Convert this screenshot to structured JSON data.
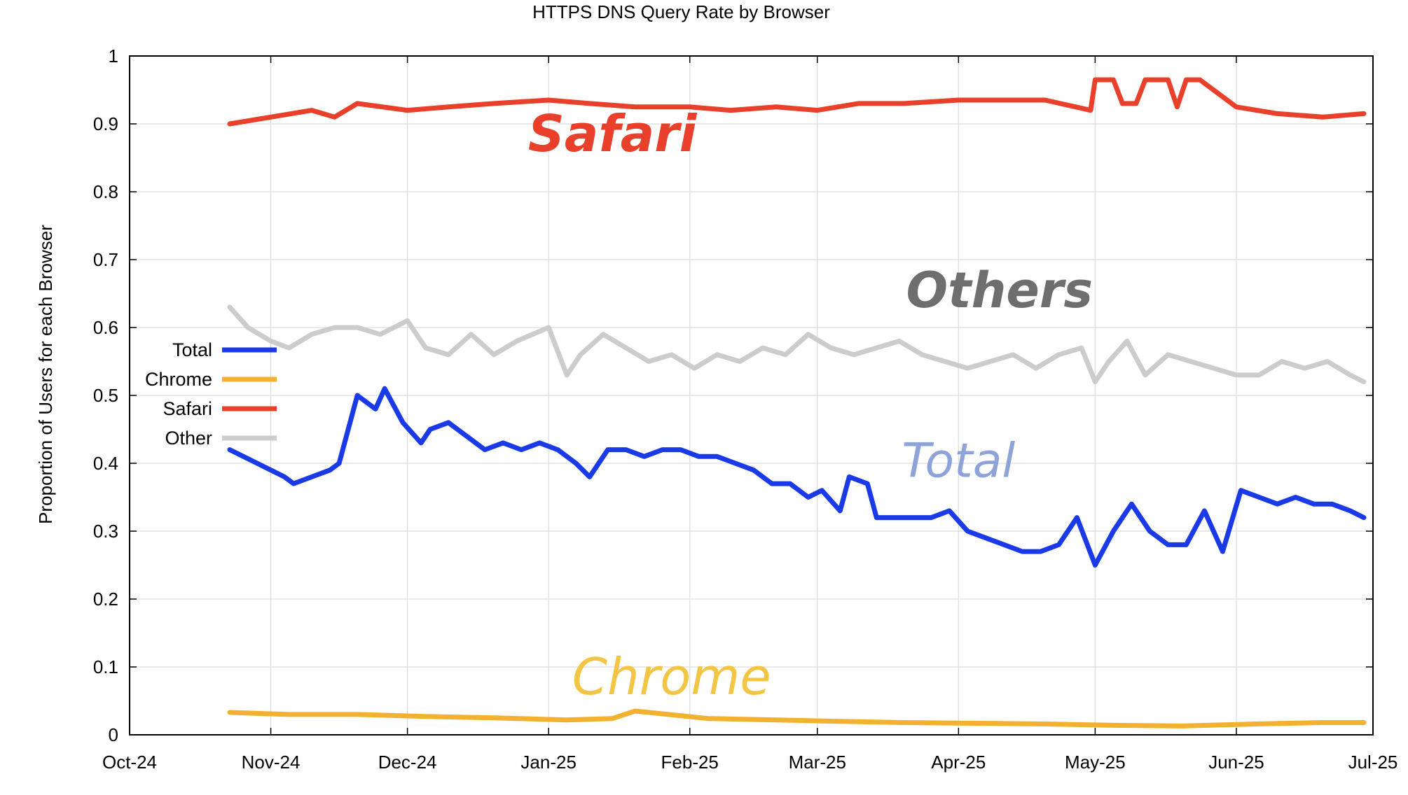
{
  "chart_data": {
    "type": "line",
    "title": "HTTPS DNS Query Rate by Browser",
    "ylabel": "Proportion of Users for each Browser",
    "xlabel": "",
    "ylim": [
      0,
      1
    ],
    "yticks": [
      "0",
      "0.1",
      "0.2",
      "0.3",
      "0.4",
      "0.5",
      "0.6",
      "0.7",
      "0.8",
      "0.9",
      "1"
    ],
    "xticks": [
      "Oct-24",
      "Nov-24",
      "Dec-24",
      "Jan-25",
      "Feb-25",
      "Mar-25",
      "Apr-25",
      "May-25",
      "Jun-25",
      "Jul-25"
    ],
    "xlim": [
      "2024-10-01",
      "2025-07-01"
    ],
    "grid": true,
    "legend_position": "center-left",
    "series": [
      {
        "name": "Total",
        "color": "#1a3ae8",
        "x": [
          "2024-10-23",
          "2024-10-29",
          "2024-11-04",
          "2024-11-06",
          "2024-11-10",
          "2024-11-14",
          "2024-11-16",
          "2024-11-20",
          "2024-11-24",
          "2024-11-26",
          "2024-11-30",
          "2024-12-04",
          "2024-12-06",
          "2024-12-10",
          "2024-12-14",
          "2024-12-18",
          "2024-12-22",
          "2024-12-26",
          "2024-12-30",
          "2025-01-03",
          "2025-01-07",
          "2025-01-10",
          "2025-01-14",
          "2025-01-18",
          "2025-01-22",
          "2025-01-26",
          "2025-01-30",
          "2025-02-03",
          "2025-02-07",
          "2025-02-11",
          "2025-02-15",
          "2025-02-19",
          "2025-02-23",
          "2025-02-27",
          "2025-03-02",
          "2025-03-06",
          "2025-03-08",
          "2025-03-12",
          "2025-03-14",
          "2025-03-18",
          "2025-03-22",
          "2025-03-26",
          "2025-03-30",
          "2025-04-03",
          "2025-04-07",
          "2025-04-11",
          "2025-04-15",
          "2025-04-19",
          "2025-04-23",
          "2025-04-27",
          "2025-05-01",
          "2025-05-05",
          "2025-05-09",
          "2025-05-13",
          "2025-05-17",
          "2025-05-21",
          "2025-05-25",
          "2025-05-29",
          "2025-06-02",
          "2025-06-06",
          "2025-06-10",
          "2025-06-14",
          "2025-06-18",
          "2025-06-22",
          "2025-06-26",
          "2025-06-29"
        ],
        "values": [
          0.42,
          0.4,
          0.38,
          0.37,
          0.38,
          0.39,
          0.4,
          0.5,
          0.48,
          0.51,
          0.46,
          0.43,
          0.45,
          0.46,
          0.44,
          0.42,
          0.43,
          0.42,
          0.43,
          0.42,
          0.4,
          0.38,
          0.42,
          0.42,
          0.41,
          0.42,
          0.42,
          0.41,
          0.41,
          0.4,
          0.39,
          0.37,
          0.37,
          0.35,
          0.36,
          0.33,
          0.38,
          0.37,
          0.32,
          0.32,
          0.32,
          0.32,
          0.33,
          0.3,
          0.29,
          0.28,
          0.27,
          0.27,
          0.28,
          0.32,
          0.25,
          0.3,
          0.34,
          0.3,
          0.28,
          0.28,
          0.33,
          0.27,
          0.36,
          0.35,
          0.34,
          0.35,
          0.34,
          0.34,
          0.33,
          0.32
        ]
      },
      {
        "name": "Chrome",
        "color": "#f2b12f",
        "x": [
          "2024-10-23",
          "2024-11-05",
          "2024-11-20",
          "2024-12-05",
          "2024-12-20",
          "2025-01-05",
          "2025-01-15",
          "2025-01-20",
          "2025-02-05",
          "2025-02-20",
          "2025-03-05",
          "2025-03-20",
          "2025-04-05",
          "2025-04-20",
          "2025-05-05",
          "2025-05-20",
          "2025-06-05",
          "2025-06-20",
          "2025-06-29"
        ],
        "values": [
          0.033,
          0.03,
          0.03,
          0.027,
          0.025,
          0.022,
          0.024,
          0.035,
          0.024,
          0.022,
          0.02,
          0.018,
          0.017,
          0.016,
          0.014,
          0.013,
          0.016,
          0.018,
          0.018
        ]
      },
      {
        "name": "Safari",
        "color": "#e8402a",
        "x": [
          "2024-10-23",
          "2024-11-01",
          "2024-11-10",
          "2024-11-15",
          "2024-11-20",
          "2024-12-01",
          "2024-12-10",
          "2024-12-20",
          "2025-01-01",
          "2025-01-10",
          "2025-01-20",
          "2025-02-01",
          "2025-02-10",
          "2025-02-20",
          "2025-03-01",
          "2025-03-10",
          "2025-03-20",
          "2025-04-01",
          "2025-04-10",
          "2025-04-20",
          "2025-04-30",
          "2025-05-01",
          "2025-05-05",
          "2025-05-07",
          "2025-05-10",
          "2025-05-12",
          "2025-05-17",
          "2025-05-19",
          "2025-05-21",
          "2025-05-24",
          "2025-06-01",
          "2025-06-10",
          "2025-06-20",
          "2025-06-29"
        ],
        "values": [
          0.9,
          0.91,
          0.92,
          0.91,
          0.93,
          0.92,
          0.925,
          0.93,
          0.935,
          0.93,
          0.925,
          0.925,
          0.92,
          0.925,
          0.92,
          0.93,
          0.93,
          0.935,
          0.935,
          0.935,
          0.92,
          0.965,
          0.965,
          0.93,
          0.93,
          0.965,
          0.965,
          0.925,
          0.965,
          0.965,
          0.925,
          0.915,
          0.91,
          0.915
        ]
      },
      {
        "name": "Other",
        "color": "#cccccc",
        "x": [
          "2024-10-23",
          "2024-10-27",
          "2024-11-01",
          "2024-11-05",
          "2024-11-10",
          "2024-11-15",
          "2024-11-20",
          "2024-11-25",
          "2024-12-01",
          "2024-12-05",
          "2024-12-10",
          "2024-12-15",
          "2024-12-20",
          "2024-12-25",
          "2025-01-01",
          "2025-01-05",
          "2025-01-08",
          "2025-01-13",
          "2025-01-18",
          "2025-01-23",
          "2025-01-28",
          "2025-02-02",
          "2025-02-07",
          "2025-02-12",
          "2025-02-17",
          "2025-02-22",
          "2025-02-27",
          "2025-03-04",
          "2025-03-09",
          "2025-03-14",
          "2025-03-19",
          "2025-03-24",
          "2025-03-29",
          "2025-04-03",
          "2025-04-08",
          "2025-04-13",
          "2025-04-18",
          "2025-04-23",
          "2025-04-28",
          "2025-05-01",
          "2025-05-04",
          "2025-05-08",
          "2025-05-12",
          "2025-05-17",
          "2025-05-22",
          "2025-05-27",
          "2025-06-01",
          "2025-06-06",
          "2025-06-11",
          "2025-06-16",
          "2025-06-21",
          "2025-06-26",
          "2025-06-29"
        ],
        "values": [
          0.63,
          0.6,
          0.58,
          0.57,
          0.59,
          0.6,
          0.6,
          0.59,
          0.61,
          0.57,
          0.56,
          0.59,
          0.56,
          0.58,
          0.6,
          0.53,
          0.56,
          0.59,
          0.57,
          0.55,
          0.56,
          0.54,
          0.56,
          0.55,
          0.57,
          0.56,
          0.59,
          0.57,
          0.56,
          0.57,
          0.58,
          0.56,
          0.55,
          0.54,
          0.55,
          0.56,
          0.54,
          0.56,
          0.57,
          0.52,
          0.55,
          0.58,
          0.53,
          0.56,
          0.55,
          0.54,
          0.53,
          0.53,
          0.55,
          0.54,
          0.55,
          0.53,
          0.52
        ]
      }
    ],
    "annotations": [
      {
        "text": "Safari",
        "color": "#e8402a"
      },
      {
        "text": "Others",
        "color": "#6e6e6e"
      },
      {
        "text": "Total",
        "color": "#8ea4d9"
      },
      {
        "text": "Chrome",
        "color": "#f2c544"
      }
    ]
  }
}
